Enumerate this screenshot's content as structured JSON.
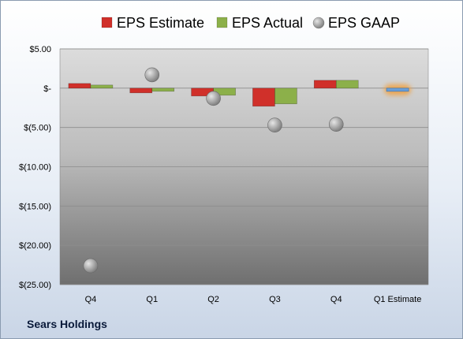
{
  "company": "Sears Holdings",
  "chart_data": {
    "type": "bar",
    "categories": [
      "Q4",
      "Q1",
      "Q2",
      "Q3",
      "Q4",
      "Q1 Estimate"
    ],
    "series": [
      {
        "name": "EPS Estimate",
        "values": [
          0.6,
          -0.6,
          -1.0,
          -2.3,
          1.0,
          -0.4
        ],
        "color": "#d0302a"
      },
      {
        "name": "EPS Actual",
        "values": [
          0.4,
          -0.4,
          -0.9,
          -2.0,
          1.0,
          null
        ],
        "color": "#8cb04a"
      },
      {
        "name": "EPS GAAP",
        "values": [
          -22.6,
          1.7,
          -1.3,
          -4.7,
          -4.6,
          null
        ],
        "color": "#9a9a9a"
      }
    ],
    "estimate_only": {
      "category": "Q1 Estimate",
      "value": -0.4,
      "color": "#6a9fd8",
      "glow": "#f0a040"
    },
    "y_ticks": [
      5,
      0,
      -5,
      -10,
      -15,
      -20,
      -25
    ],
    "y_tick_labels": [
      "$5.00",
      "$-",
      "$(5.00)",
      "$(10.00)",
      "$(15.00)",
      "$(20.00)",
      "$(25.00)"
    ],
    "ylim": [
      -25,
      5
    ],
    "grid": true,
    "legend": "top"
  }
}
